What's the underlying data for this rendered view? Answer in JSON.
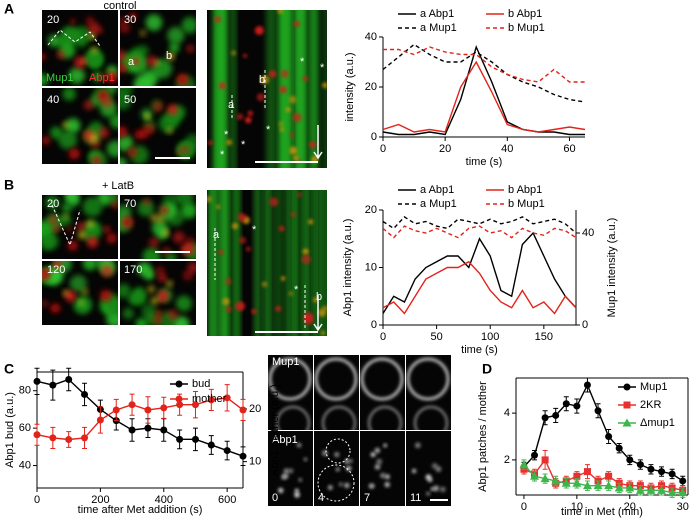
{
  "panel_labels": [
    "A",
    "B",
    "C",
    "D"
  ],
  "images": {
    "A": {
      "title": "control",
      "frames": [
        "20",
        "30",
        "40",
        "50"
      ],
      "channels": [
        "Mup1",
        "Abp1"
      ],
      "spots": [
        "a",
        "b"
      ],
      "kymo": [
        "a",
        "b"
      ],
      "kymo_marks": [
        "*",
        "*",
        "*",
        "*",
        "*",
        "*"
      ]
    },
    "B": {
      "title": "+ LatB",
      "frames": [
        "20",
        "70",
        "120",
        "170"
      ],
      "kymo": [
        "a",
        "b"
      ],
      "kymo_marks": [
        "*",
        "*"
      ]
    },
    "C": {
      "channels": [
        "Mup1",
        "Abp1"
      ],
      "frames": [
        "0",
        "4",
        "7",
        "11"
      ]
    }
  },
  "chart_data": [
    {
      "type": "line",
      "xlabel": "time (s)",
      "ylabel": "intensity (a.u.)",
      "x": [
        0,
        5,
        10,
        15,
        20,
        25,
        30,
        35,
        40,
        45,
        50,
        55,
        60,
        65
      ],
      "xlim": [
        0,
        65
      ],
      "xticks": [
        0,
        20,
        40,
        60
      ],
      "ylim": [
        0,
        40
      ],
      "yticks": [
        0,
        20,
        40
      ],
      "series": [
        {
          "name": "a Abp1",
          "color": "#000000",
          "style": "solid",
          "values": [
            2,
            1,
            1,
            2,
            1,
            15,
            36,
            22,
            6,
            3,
            2,
            2,
            1,
            1
          ]
        },
        {
          "name": "a Mup1",
          "color": "#000000",
          "style": "dashed",
          "values": [
            27,
            32,
            37,
            33,
            30,
            30,
            34,
            30,
            25,
            22,
            20,
            17,
            15,
            14
          ]
        },
        {
          "name": "b Abp1",
          "color": "#e2231a",
          "style": "solid",
          "values": [
            3,
            5,
            2,
            3,
            2,
            20,
            30,
            18,
            5,
            3,
            2,
            3,
            4,
            3
          ]
        },
        {
          "name": "b Mup1",
          "color": "#e2231a",
          "style": "dashed",
          "values": [
            35,
            35,
            33,
            36,
            34,
            33,
            33,
            28,
            25,
            23,
            22,
            27,
            22,
            22
          ]
        }
      ]
    },
    {
      "type": "line",
      "xlabel": "time (s)",
      "ylabel": "Abp1 intensity (a.u.)",
      "y2label": "Mup1 intensity (a.u.)",
      "x": [
        0,
        10,
        20,
        30,
        40,
        50,
        60,
        70,
        80,
        90,
        100,
        110,
        120,
        130,
        140,
        150,
        160,
        170,
        180
      ],
      "xlim": [
        0,
        180
      ],
      "xticks": [
        0,
        50,
        100,
        150
      ],
      "ylim": [
        0,
        20
      ],
      "yticks": [
        0,
        10,
        20
      ],
      "y2lim": [
        0,
        50
      ],
      "y2ticks": [
        0,
        40
      ],
      "series": [
        {
          "name": "a Abp1",
          "color": "#000000",
          "style": "solid",
          "values": [
            2,
            5,
            4,
            8,
            10,
            11,
            12,
            12,
            10,
            15,
            12,
            6,
            5,
            14,
            16,
            12,
            8,
            5,
            3
          ]
        },
        {
          "name": "a Mup1",
          "color": "#000000",
          "style": "dashed",
          "axis": "y2",
          "values": [
            45,
            42,
            47,
            44,
            45,
            43,
            42,
            46,
            45,
            44,
            46,
            44,
            45,
            47,
            44,
            45,
            46,
            44,
            40
          ]
        },
        {
          "name": "b Abp1",
          "color": "#e2231a",
          "style": "solid",
          "values": [
            3,
            4,
            2,
            5,
            8,
            9,
            10,
            10,
            11,
            9,
            6,
            4,
            3,
            6,
            3,
            4,
            2,
            5,
            3
          ]
        },
        {
          "name": "b Mup1",
          "color": "#e2231a",
          "style": "dashed",
          "axis": "y2",
          "values": [
            42,
            38,
            43,
            41,
            40,
            42,
            40,
            38,
            42,
            43,
            40,
            41,
            38,
            42,
            40,
            39,
            42,
            41,
            38
          ]
        }
      ]
    },
    {
      "type": "line",
      "xlabel": "time after Met addition (s)",
      "ylabel": "Abp1 bud (a.u.)",
      "y2label": "Abp1 mother (a.u.)",
      "x": [
        0,
        50,
        100,
        150,
        200,
        250,
        300,
        350,
        400,
        450,
        500,
        550,
        600,
        650
      ],
      "xlim": [
        0,
        650
      ],
      "xticks": [
        0,
        200,
        400,
        600
      ],
      "ylim": [
        28,
        90
      ],
      "yticks": [
        40,
        60,
        80
      ],
      "y2lim": [
        5,
        27
      ],
      "y2ticks": [
        10,
        20
      ],
      "series": [
        {
          "name": "bud",
          "color": "#000000",
          "style": "solid",
          "marker": "circle",
          "values": [
            85,
            83,
            86,
            78,
            70,
            64,
            59,
            60,
            59,
            54,
            54,
            51,
            48,
            45
          ],
          "errors": [
            7,
            8,
            6,
            6,
            5,
            5,
            6,
            5,
            6,
            5,
            6,
            5,
            5,
            5
          ]
        },
        {
          "name": "mother",
          "color": "#e2231a",
          "style": "solid",
          "marker": "circle",
          "axis": "y2",
          "values": [
            15.1,
            14.5,
            14.2,
            14.5,
            17.9,
            19.8,
            20.8,
            19.8,
            20.2,
            20.8,
            20.8,
            21.7,
            22.1,
            19.8
          ],
          "errors": [
            2,
            2,
            1.5,
            2,
            2.5,
            2,
            2,
            2.5,
            2,
            2,
            2.5,
            2,
            2.5,
            2
          ]
        }
      ]
    },
    {
      "type": "line",
      "xlabel": "time in Met (min)",
      "ylabel": "Abp1 patches / mother",
      "x": [
        0,
        2,
        4,
        6,
        8,
        10,
        12,
        14,
        16,
        18,
        20,
        22,
        24,
        26,
        28,
        30
      ],
      "xlim": [
        -1.5,
        31
      ],
      "xticks": [
        0,
        10,
        20,
        30
      ],
      "ylim": [
        0.5,
        5.5
      ],
      "yticks": [
        2,
        4
      ],
      "series": [
        {
          "name": "Mup1",
          "color": "#000000",
          "style": "solid",
          "marker": "circle",
          "values": [
            1.7,
            2.2,
            3.8,
            3.9,
            4.4,
            4.3,
            5.2,
            4.1,
            3.0,
            2.5,
            2.0,
            1.8,
            1.6,
            1.5,
            1.4,
            1.1
          ],
          "errors": [
            0.2,
            0.2,
            0.3,
            0.3,
            0.3,
            0.3,
            0.3,
            0.3,
            0.3,
            0.2,
            0.2,
            0.2,
            0.2,
            0.2,
            0.2,
            0.2
          ]
        },
        {
          "name": "2KR",
          "color": "#e8312f",
          "style": "solid",
          "marker": "square",
          "values": [
            1.6,
            1.4,
            2.0,
            1.0,
            1.1,
            1.3,
            1.5,
            1.1,
            1.3,
            1.0,
            0.9,
            0.9,
            0.8,
            0.9,
            0.8,
            0.7
          ],
          "errors": [
            0.2,
            0.2,
            0.4,
            0.2,
            0.2,
            0.2,
            0.3,
            0.2,
            0.2,
            0.2,
            0.2,
            0.2,
            0.2,
            0.2,
            0.2,
            0.2
          ]
        },
        {
          "name": "Δmup1",
          "color": "#3cb54a",
          "style": "solid",
          "marker": "triangle",
          "values": [
            1.8,
            1.3,
            1.2,
            1.1,
            1.0,
            1.0,
            0.9,
            0.9,
            0.9,
            0.8,
            0.8,
            0.7,
            0.7,
            0.7,
            0.6,
            0.6
          ],
          "errors": [
            0.2,
            0.2,
            0.2,
            0.2,
            0.2,
            0.2,
            0.2,
            0.2,
            0.2,
            0.2,
            0.2,
            0.2,
            0.2,
            0.2,
            0.2,
            0.2
          ]
        }
      ]
    }
  ]
}
